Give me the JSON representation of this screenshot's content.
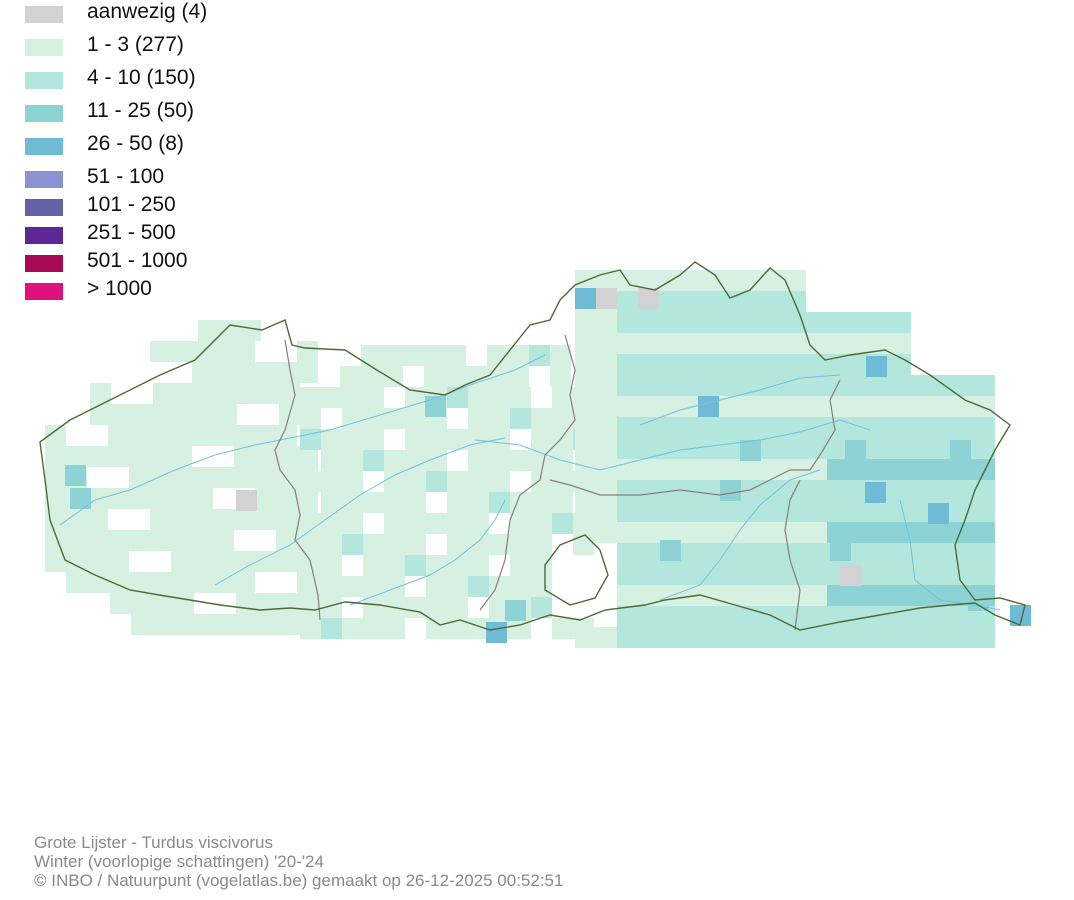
{
  "legend": {
    "items": [
      {
        "label": "aanwezig (4)",
        "color": "#d2d2d2"
      },
      {
        "label": "1 - 3 (277)",
        "color": "#d6f0e1"
      },
      {
        "label": "4 - 10 (150)",
        "color": "#b3e6dc"
      },
      {
        "label": "11 - 25 (50)",
        "color": "#8dd2d4"
      },
      {
        "label": "26 - 50 (8)",
        "color": "#6fbbd5"
      },
      {
        "label": "51 - 100",
        "color": "#8a93d2"
      },
      {
        "label": "101 - 250",
        "color": "#6262a6"
      },
      {
        "label": "251 - 500",
        "color": "#5f2696"
      },
      {
        "label": "501 - 1000",
        "color": "#a80a55"
      },
      {
        "label": "> 1000",
        "color": "#e0107d"
      }
    ]
  },
  "map": {
    "border_color": "#4e6b34",
    "province_border_color": "#8c7c7c",
    "river_color": "#72c2df"
  },
  "footer": {
    "species": "Grote Lijster - Turdus viscivorus",
    "period": "Winter (voorlopige schattingen) '20-'24",
    "credit": "© INBO / Natuurpunt (vogelatlas.be) gemaakt op 26-12-2025 00:52:51"
  }
}
